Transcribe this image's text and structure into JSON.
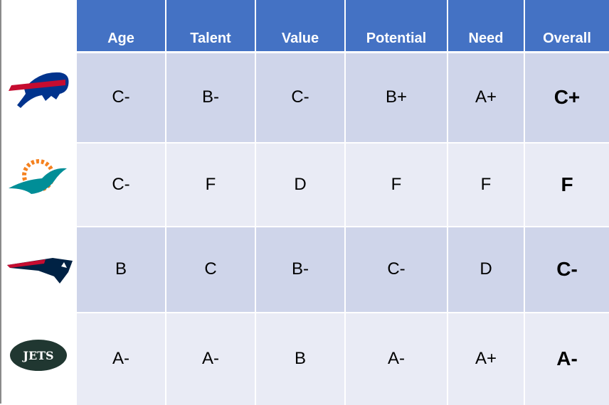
{
  "columns": [
    "Age",
    "Talent",
    "Value",
    "Potential",
    "Need",
    "Overall"
  ],
  "rows": [
    {
      "team_logo": "buffalo-bills-logo",
      "grades": [
        "C-",
        "B-",
        "C-",
        "B+",
        "A+",
        "C+"
      ]
    },
    {
      "team_logo": "miami-dolphins-logo",
      "grades": [
        "C-",
        "F",
        "D",
        "F",
        "F",
        "F"
      ]
    },
    {
      "team_logo": "new-england-patriots-logo",
      "grades": [
        "B",
        "C",
        "B-",
        "C-",
        "D",
        "C-"
      ]
    },
    {
      "team_logo": "new-york-jets-logo",
      "grades": [
        "A-",
        "A-",
        "B",
        "A-",
        "A+",
        "A-"
      ]
    }
  ],
  "colors": {
    "header": "#4472C4",
    "row_dark": "#CFD5EA",
    "row_light": "#E9EBF5"
  }
}
